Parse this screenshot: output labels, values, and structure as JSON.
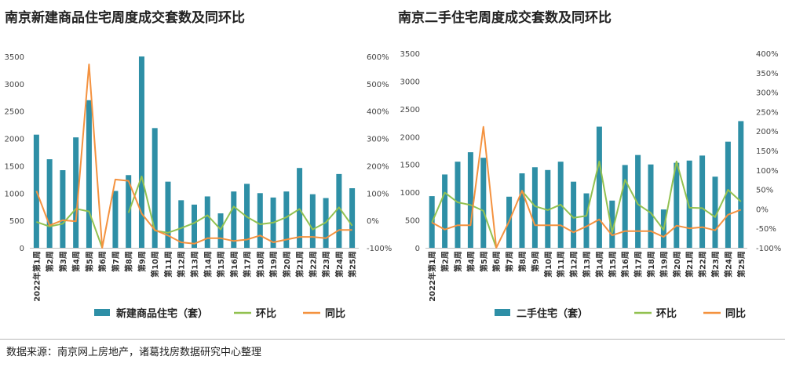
{
  "source_note": "数据来源：南京网上房地产，诸葛找房数据研究中心整理",
  "colors": {
    "bar": "#2e8fa6",
    "hb": "#92c151",
    "yoy": "#f4923f",
    "divider": "#b7b7b7"
  },
  "chart_data": [
    {
      "type": "bar",
      "title": "南京新建商品住宅周度成交套数及同环比",
      "categories": [
        "2022年第1周",
        "第2周",
        "第3周",
        "第4周",
        "第5周",
        "第6周",
        "第7周",
        "第8周",
        "第9周",
        "第10周",
        "第11周",
        "第12周",
        "第13周",
        "第14周",
        "第15周",
        "第16周",
        "第17周",
        "第18周",
        "第19周",
        "第20周",
        "第21周",
        "第22周",
        "第23周",
        "第24周",
        "第25周"
      ],
      "y_ticks": [
        "0",
        "500",
        "1000",
        "1500",
        "2000",
        "2500",
        "3000",
        "3500"
      ],
      "y2_ticks": [
        "-100%",
        "0%",
        "100%",
        "200%",
        "300%",
        "400%",
        "500%",
        "600%"
      ],
      "ylim": [
        0,
        3500
      ],
      "y2lim": [
        -100,
        600
      ],
      "series": [
        {
          "name": "新建商品住宅（套）",
          "kind": "bar",
          "axis": "left",
          "values": [
            2070,
            1620,
            1420,
            2020,
            2700,
            0,
            1040,
            1330,
            3500,
            2190,
            1210,
            870,
            790,
            940,
            630,
            1030,
            1170,
            1000,
            920,
            1030,
            1460,
            980,
            910,
            1350,
            1090
          ]
        },
        {
          "name": "环比",
          "kind": "line",
          "axis": "right",
          "values": [
            -5,
            -22,
            -12,
            43,
            33,
            -100,
            null,
            28,
            161,
            -37,
            -45,
            -28,
            -9,
            19,
            -33,
            51,
            13,
            -14,
            -8,
            12,
            42,
            -33,
            -7,
            48,
            -19
          ]
        },
        {
          "name": "同比",
          "kind": "line",
          "axis": "right",
          "values": [
            108,
            -18,
            1,
            -3,
            571,
            -100,
            150,
            145,
            25,
            -35,
            -55,
            -80,
            -85,
            -65,
            -65,
            -75,
            -70,
            -55,
            -80,
            -70,
            -60,
            -60,
            -65,
            -35,
            -35
          ]
        }
      ],
      "grid": false,
      "legend": "bottom"
    },
    {
      "type": "bar",
      "title": "南京二手住宅周度成交套数及同环比",
      "categories": [
        "2022年第1周",
        "第2周",
        "第3周",
        "第4周",
        "第5周",
        "第6周",
        "第7周",
        "第8周",
        "第9周",
        "第10周",
        "第11周",
        "第12周",
        "第13周",
        "第14周",
        "第15周",
        "第16周",
        "第17周",
        "第18周",
        "第19周",
        "第20周",
        "第21周",
        "第22周",
        "第23周",
        "第24周",
        "第25周"
      ],
      "y_ticks": [
        "0",
        "500",
        "1000",
        "1500",
        "2000",
        "2500",
        "3000",
        "3500"
      ],
      "y2_ticks": [
        "-100%",
        "-50%",
        "0%",
        "50%",
        "100%",
        "150%",
        "200%",
        "250%",
        "300%",
        "350%",
        "400%"
      ],
      "ylim": [
        0,
        3500
      ],
      "y2lim": [
        -100,
        400
      ],
      "series": [
        {
          "name": "二手住宅（套）",
          "kind": "bar",
          "axis": "left",
          "values": [
            930,
            1320,
            1550,
            1720,
            1620,
            0,
            920,
            1340,
            1450,
            1400,
            1550,
            1190,
            980,
            2180,
            850,
            1490,
            1670,
            1500,
            690,
            1530,
            1570,
            1660,
            1280,
            1910,
            2280
          ]
        },
        {
          "name": "环比",
          "kind": "line",
          "axis": "right",
          "values": [
            -35,
            42,
            17,
            10,
            -5,
            -100,
            null,
            46,
            7,
            -3,
            11,
            -23,
            -18,
            122,
            -61,
            75,
            12,
            -10,
            -54,
            122,
            3,
            2,
            -21,
            49,
            19
          ]
        },
        {
          "name": "同比",
          "kind": "line",
          "axis": "right",
          "values": [
            -35,
            -53,
            -42,
            -42,
            211,
            -100,
            -32,
            47,
            -42,
            -42,
            -42,
            -60,
            -45,
            -27,
            -68,
            -57,
            -57,
            -57,
            -72,
            -43,
            -50,
            -47,
            -55,
            -15,
            -2
          ]
        }
      ],
      "grid": false,
      "legend": "bottom"
    }
  ]
}
